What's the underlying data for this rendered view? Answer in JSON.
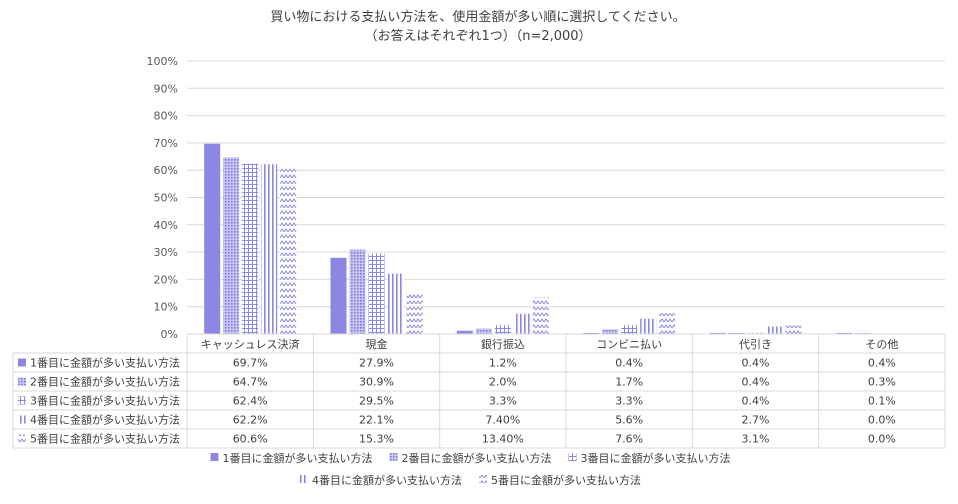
{
  "chart_data": {
    "type": "bar",
    "title": "買い物における支払い方法を、使用金額が多い順に選択してください。",
    "subtitle": "（お答えはそれぞれ1つ）（n=2,000）",
    "categories": [
      "キャッシュレス決済",
      "現金",
      "銀行振込",
      "コンビニ払い",
      "代引き",
      "その他"
    ],
    "y_ticks": [
      "0%",
      "10%",
      "20%",
      "30%",
      "40%",
      "50%",
      "60%",
      "70%",
      "80%",
      "90%",
      "100%"
    ],
    "ylim": [
      0,
      100
    ],
    "grid": true,
    "legend_position": "bottom",
    "series": [
      {
        "name": "1番目に金額が多い支払い方法",
        "color": "#8b87e3",
        "pattern": "solid",
        "values": [
          69.7,
          27.9,
          1.2,
          0.4,
          0.4,
          0.4
        ],
        "labels": [
          "69.7%",
          "27.9%",
          "1.2%",
          "0.4%",
          "0.4%",
          "0.4%"
        ]
      },
      {
        "name": "2番目に金額が多い支払い方法",
        "color": "#aaa7ee",
        "pattern": "dots",
        "values": [
          64.7,
          30.9,
          2.0,
          1.7,
          0.4,
          0.3
        ],
        "labels": [
          "64.7%",
          "30.9%",
          "2.0%",
          "1.7%",
          "0.4%",
          "0.3%"
        ]
      },
      {
        "name": "3番目に金額が多い支払い方法",
        "color": "#8b87e3",
        "pattern": "grid",
        "values": [
          62.4,
          29.5,
          3.3,
          3.3,
          0.4,
          0.1
        ],
        "labels": [
          "62.4%",
          "29.5%",
          "3.3%",
          "3.3%",
          "0.4%",
          "0.1%"
        ]
      },
      {
        "name": "4番目に金額が多い支払い方法",
        "color": "#8b87e3",
        "pattern": "vlines",
        "values": [
          62.2,
          22.1,
          7.4,
          5.6,
          2.7,
          0.0
        ],
        "labels": [
          "62.2%",
          "22.1%",
          "7.40%",
          "5.6%",
          "2.7%",
          "0.0%"
        ]
      },
      {
        "name": "5番目に金額が多い支払い方法",
        "color": "#8b87e3",
        "pattern": "wave",
        "values": [
          60.6,
          15.3,
          13.4,
          7.6,
          3.1,
          0.0
        ],
        "labels": [
          "60.6%",
          "15.3%",
          "13.40%",
          "7.6%",
          "3.1%",
          "0.0%"
        ]
      }
    ]
  }
}
